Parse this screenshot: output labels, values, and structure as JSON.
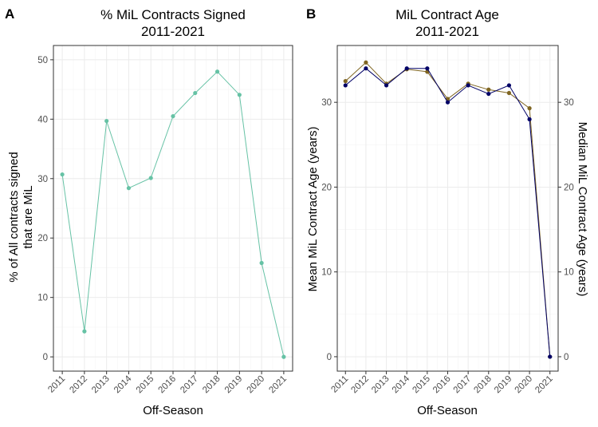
{
  "chart_data": [
    {
      "type": "line",
      "panel_label": "A",
      "title_lines": [
        "% MiL Contracts Signed",
        "2011-2021"
      ],
      "xlabel": "Off-Season",
      "ylabel_lines": [
        "% of All contracts signed",
        "that are MiL"
      ],
      "categories": [
        "2011",
        "2012",
        "2013",
        "2014",
        "2015",
        "2016",
        "2017",
        "2018",
        "2019",
        "2020",
        "2021"
      ],
      "series": [
        {
          "color": "#66c2a5",
          "values": [
            30.7,
            4.3,
            39.7,
            28.4,
            30.1,
            40.5,
            44.4,
            48.0,
            44.1,
            15.8,
            0.0
          ]
        }
      ],
      "ylim": [
        -2.4,
        52.4
      ],
      "yticks": [
        0,
        10,
        20,
        30,
        40,
        50
      ],
      "grid": true
    },
    {
      "type": "line",
      "panel_label": "B",
      "title_lines": [
        "MiL Contract Age",
        "2011-2021"
      ],
      "xlabel": "Off-Season",
      "ylabel_left": "Mean MiL Contract Age (years)",
      "ylabel_right": "Median MiL Contract Age (years)",
      "categories": [
        "2011",
        "2012",
        "2013",
        "2014",
        "2015",
        "2016",
        "2017",
        "2018",
        "2019",
        "2020",
        "2021"
      ],
      "series": [
        {
          "color": "#7f6521",
          "values": [
            32.5,
            34.7,
            32.2,
            33.9,
            33.6,
            30.4,
            32.2,
            31.5,
            31.1,
            29.3,
            0.0
          ]
        },
        {
          "color": "#000066",
          "values": [
            32.0,
            34.0,
            32.0,
            34.0,
            34.0,
            30.0,
            32.0,
            31.0,
            32.0,
            28.0,
            0.0
          ]
        }
      ],
      "ylim": [
        -1.7,
        36.7
      ],
      "yticks": [
        0,
        10,
        20,
        30
      ],
      "grid": true
    }
  ],
  "colors": {
    "left_axis_title": "#7f6521",
    "right_axis_title": "#000066"
  }
}
